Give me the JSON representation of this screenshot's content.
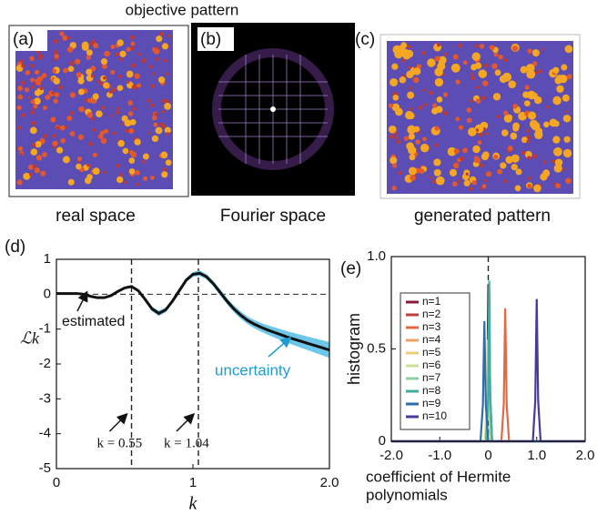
{
  "figure": {
    "title": "objective pattern",
    "panels": [
      {
        "label": "(a)",
        "caption": "real space"
      },
      {
        "label": "(b)",
        "caption": "Fourier space"
      },
      {
        "label": "(c)",
        "caption": "generated pattern"
      }
    ]
  },
  "chart_data": [
    {
      "type": "line",
      "label": "(d)",
      "xlabel": "k",
      "ylabel": "ℒk",
      "xlim": [
        0,
        2
      ],
      "xticks": [
        0,
        1,
        {
          "value": 2,
          "label": "2.0"
        }
      ],
      "ylim": [
        -5,
        1
      ],
      "yticks": [
        -5,
        -4,
        -3,
        -2,
        -1,
        0,
        1
      ],
      "hline": 0,
      "vlines": [
        0.55,
        1.04
      ],
      "vline_labels": [
        "k = 0.55",
        "k = 1.04"
      ],
      "x": [
        0,
        0.05,
        0.1,
        0.15,
        0.2,
        0.25,
        0.3,
        0.35,
        0.4,
        0.45,
        0.5,
        0.55,
        0.6,
        0.65,
        0.7,
        0.75,
        0.8,
        0.85,
        0.9,
        0.95,
        1.0,
        1.05,
        1.1,
        1.15,
        1.2,
        1.25,
        1.3,
        1.35,
        1.4,
        1.45,
        1.5,
        1.55,
        1.6,
        1.65,
        1.7,
        1.75,
        1.8,
        1.85,
        1.9,
        1.95,
        2.0
      ],
      "series": [
        {
          "name": "estimated",
          "color": "#111111",
          "values": [
            0.02,
            0.02,
            0.02,
            0.02,
            0.0,
            -0.06,
            -0.1,
            -0.1,
            -0.04,
            0.08,
            0.18,
            0.22,
            0.1,
            -0.15,
            -0.42,
            -0.55,
            -0.45,
            -0.2,
            0.1,
            0.4,
            0.57,
            0.6,
            0.5,
            0.3,
            0.05,
            -0.2,
            -0.42,
            -0.6,
            -0.75,
            -0.86,
            -0.95,
            -1.03,
            -1.1,
            -1.17,
            -1.24,
            -1.3,
            -1.36,
            -1.42,
            -1.48,
            -1.54,
            -1.6
          ],
          "band_name": "uncertainty",
          "band_color": "#6ec6e8",
          "errors": [
            0.02,
            0.02,
            0.02,
            0.02,
            0.02,
            0.02,
            0.02,
            0.02,
            0.03,
            0.03,
            0.03,
            0.03,
            0.04,
            0.05,
            0.06,
            0.07,
            0.06,
            0.05,
            0.05,
            0.05,
            0.06,
            0.07,
            0.07,
            0.07,
            0.08,
            0.08,
            0.09,
            0.1,
            0.1,
            0.11,
            0.12,
            0.13,
            0.14,
            0.15,
            0.16,
            0.17,
            0.18,
            0.19,
            0.2,
            0.21,
            0.22
          ]
        }
      ]
    },
    {
      "type": "line",
      "label": "(e)",
      "xlabel": [
        "coefficient of Hermite",
        "polynomials"
      ],
      "ylabel": "histogram",
      "xlim": [
        -2,
        2
      ],
      "xticks": [
        {
          "value": -2,
          "label": "-2.0"
        },
        {
          "value": -1,
          "label": "-1.0"
        },
        0,
        {
          "value": 1,
          "label": "1.0"
        },
        {
          "value": 2,
          "label": "2.0"
        }
      ],
      "ylim": [
        0,
        1
      ],
      "yticks": [
        0,
        0.5,
        {
          "value": 1,
          "label": "1.0"
        }
      ],
      "vlines": [
        0
      ],
      "series": [
        {
          "name": "n=1",
          "color": "#8b1a3a",
          "x": [
            -2,
            -0.06,
            -0.02,
            0.0,
            0.02,
            0.06,
            2
          ],
          "values": [
            0,
            0,
            0.25,
            0.85,
            0.25,
            0,
            0
          ]
        },
        {
          "name": "n=2",
          "color": "#c23b3b",
          "x": [
            -2,
            -0.04,
            0.0,
            0.02,
            0.04,
            0.08,
            2
          ],
          "values": [
            0,
            0,
            0.25,
            0.82,
            0.25,
            0,
            0
          ]
        },
        {
          "name": "n=3",
          "color": "#e06a45",
          "x": [
            -2,
            0.27,
            0.32,
            0.35,
            0.38,
            0.43,
            2
          ],
          "values": [
            0,
            0,
            0.2,
            0.72,
            0.2,
            0,
            0
          ]
        },
        {
          "name": "n=4",
          "color": "#f0a266",
          "x": [
            -2,
            -0.05,
            -0.01,
            0.01,
            0.03,
            0.07,
            2
          ],
          "values": [
            0,
            0,
            0.2,
            0.6,
            0.2,
            0,
            0
          ]
        },
        {
          "name": "n=5",
          "color": "#e8cf7a",
          "x": [
            -2,
            -0.07,
            -0.03,
            -0.01,
            0.01,
            0.05,
            2
          ],
          "values": [
            0,
            0,
            0.2,
            0.55,
            0.2,
            0,
            0
          ]
        },
        {
          "name": "n=6",
          "color": "#c9e296",
          "x": [
            -2,
            -0.06,
            -0.02,
            0.0,
            0.02,
            0.06,
            2
          ],
          "values": [
            0,
            0,
            0.2,
            0.5,
            0.2,
            0,
            0
          ]
        },
        {
          "name": "n=7",
          "color": "#8fcf9e",
          "x": [
            -2,
            -0.05,
            -0.01,
            0.01,
            0.03,
            0.07,
            2
          ],
          "values": [
            0,
            0,
            0.2,
            0.6,
            0.2,
            0,
            0
          ]
        },
        {
          "name": "n=8",
          "color": "#3fae9f",
          "x": [
            -2,
            -0.04,
            0.0,
            0.02,
            0.04,
            0.08,
            2
          ],
          "values": [
            0,
            0,
            0.25,
            0.87,
            0.25,
            0,
            0
          ]
        },
        {
          "name": "n=9",
          "color": "#2f6eae",
          "x": [
            -2,
            -0.16,
            -0.11,
            -0.08,
            -0.05,
            0.0,
            2
          ],
          "values": [
            0,
            0,
            0.2,
            0.65,
            0.2,
            0,
            0
          ]
        },
        {
          "name": "n=10",
          "color": "#4b3a98",
          "x": [
            -2,
            0.92,
            0.97,
            1.0,
            1.03,
            1.08,
            2
          ],
          "values": [
            0,
            0,
            0.22,
            0.77,
            0.22,
            0,
            0
          ]
        }
      ]
    }
  ]
}
